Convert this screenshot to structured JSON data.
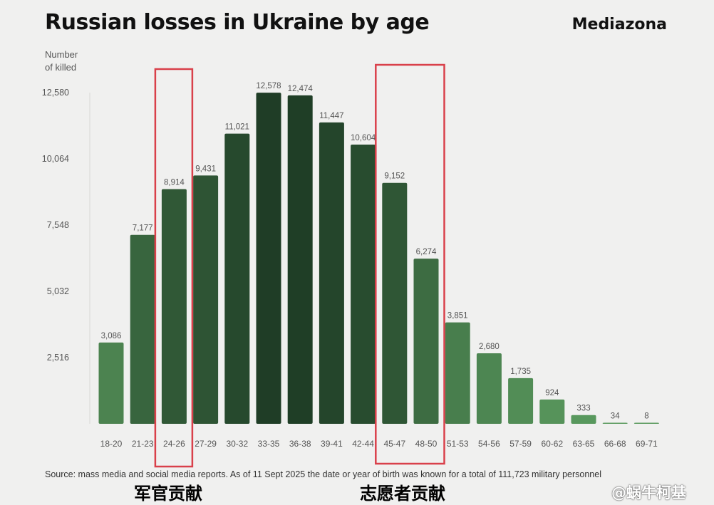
{
  "title": "Russian losses in Ukraine by age",
  "brand": "Mediazona",
  "ylabel": "Number\nof killed",
  "source": "Source: mass media and social media reports. As of 11 Sept 2025 the date or year of birth was known for a total of 111,723 military personnel",
  "annotations": {
    "left": "军官贡献",
    "right": "志愿者贡献"
  },
  "watermark": "@蜗牛柯基",
  "colors": {
    "light_green": "#5a9a5e",
    "dark_green": "#1f3d26",
    "highlight_box": "#d9404a"
  },
  "chart_data": {
    "type": "bar",
    "title": "Russian losses in Ukraine by age",
    "ylabel": "Number of killed",
    "xlabel": "",
    "categories": [
      "18-20",
      "21-23",
      "24-26",
      "27-29",
      "30-32",
      "33-35",
      "36-38",
      "39-41",
      "42-44",
      "45-47",
      "48-50",
      "51-53",
      "54-56",
      "57-59",
      "60-62",
      "63-65",
      "66-68",
      "69-71"
    ],
    "values": [
      3086,
      7177,
      8914,
      9431,
      11021,
      12578,
      12474,
      11447,
      10604,
      9152,
      6274,
      3851,
      2680,
      1735,
      924,
      333,
      34,
      8
    ],
    "value_labels": [
      "3,086",
      "7,177",
      "8,914",
      "9,431",
      "11,021",
      "12,578",
      "12,474",
      "11,447",
      "10,604",
      "9,152",
      "6,274",
      "3,851",
      "2,680",
      "1,735",
      "924",
      "333",
      "34",
      "8"
    ],
    "yticks": [
      2516,
      5032,
      7548,
      10064,
      12580
    ],
    "ytick_labels": [
      "2,516",
      "5,032",
      "7,548",
      "10,064",
      "12,580"
    ],
    "ylim": [
      0,
      12580
    ],
    "grid": false,
    "highlighted_categories": [
      [
        "24-26"
      ],
      [
        "45-47",
        "48-50"
      ]
    ]
  }
}
